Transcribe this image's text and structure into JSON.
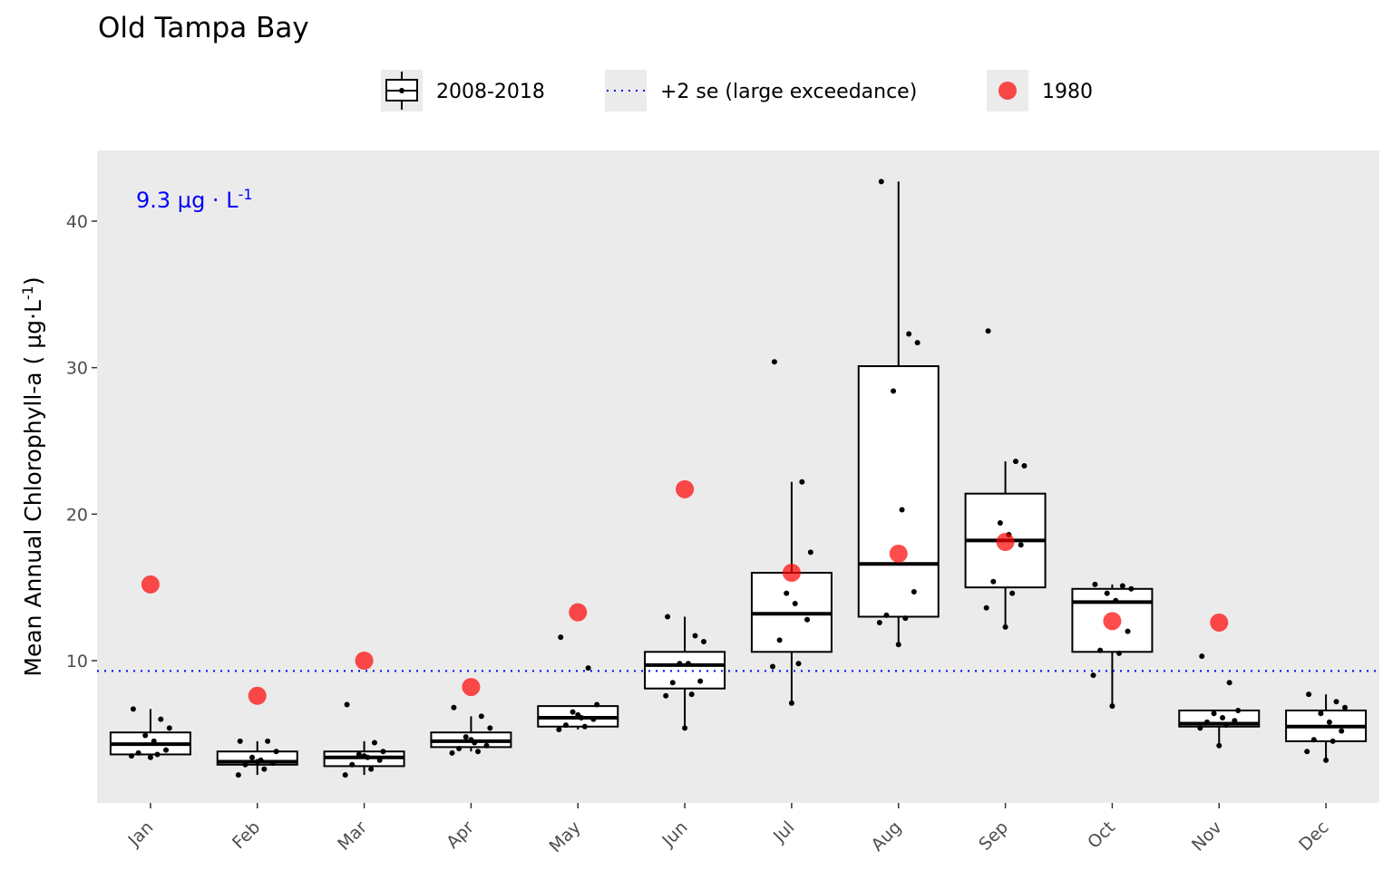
{
  "chart_data": {
    "type": "boxplot",
    "title": "Old Tampa Bay",
    "xlabel": "",
    "ylabel": "Mean Annual Chlorophyll-a ( µg·L",
    "ylabel_sup": "-1",
    "ylabel_end": ")",
    "categories": [
      "Jan",
      "Feb",
      "Mar",
      "Apr",
      "May",
      "Jun",
      "Jul",
      "Aug",
      "Sep",
      "Oct",
      "Nov",
      "Dec"
    ],
    "ylim": [
      0,
      45
    ],
    "yticks": [
      10,
      20,
      30,
      40
    ],
    "grid": false,
    "legend_position": "top",
    "legend": {
      "box_label": "2008-2018",
      "line_label": "+2 se (large exceedance)",
      "point_label": "1980"
    },
    "annotation": {
      "text": "9.3 µg · L",
      "sup": "-1"
    },
    "threshold": 9.3,
    "colors": {
      "panel": "#ebebeb",
      "threshold": "#0000ff",
      "point_1980": "#ff0000",
      "annotation": "#0000ff"
    },
    "boxes": [
      {
        "month": "Jan",
        "lower": 3.5,
        "q1": 3.6,
        "median": 4.3,
        "q3": 5.1,
        "upper": 6.7
      },
      {
        "month": "Feb",
        "lower": 2.2,
        "q1": 2.9,
        "median": 3.1,
        "q3": 3.8,
        "upper": 4.5
      },
      {
        "month": "Mar",
        "lower": 2.2,
        "q1": 2.8,
        "median": 3.4,
        "q3": 3.8,
        "upper": 4.5
      },
      {
        "month": "Apr",
        "lower": 3.8,
        "q1": 4.1,
        "median": 4.5,
        "q3": 5.1,
        "upper": 6.2
      },
      {
        "month": "May",
        "lower": 5.3,
        "q1": 5.5,
        "median": 6.1,
        "q3": 6.9,
        "upper": 6.9
      },
      {
        "month": "Jun",
        "lower": 5.4,
        "q1": 8.1,
        "median": 9.7,
        "q3": 10.6,
        "upper": 13.0
      },
      {
        "month": "Jul",
        "lower": 7.1,
        "q1": 10.6,
        "median": 13.2,
        "q3": 16.0,
        "upper": 22.2
      },
      {
        "month": "Aug",
        "lower": 11.1,
        "q1": 13.0,
        "median": 16.6,
        "q3": 30.1,
        "upper": 42.7
      },
      {
        "month": "Sep",
        "lower": 12.3,
        "q1": 15.0,
        "median": 18.2,
        "q3": 21.4,
        "upper": 23.6
      },
      {
        "month": "Oct",
        "lower": 6.9,
        "q1": 10.6,
        "median": 14.0,
        "q3": 14.9,
        "upper": 15.2
      },
      {
        "month": "Nov",
        "lower": 4.2,
        "q1": 5.5,
        "median": 5.7,
        "q3": 6.6,
        "upper": 6.6
      },
      {
        "month": "Dec",
        "lower": 3.2,
        "q1": 4.5,
        "median": 5.5,
        "q3": 6.6,
        "upper": 7.7
      }
    ],
    "yearly_points": [
      [
        6.7,
        6.0,
        5.4,
        4.9,
        4.5,
        3.9,
        3.7,
        3.6,
        3.5,
        3.4
      ],
      [
        4.5,
        4.5,
        3.8,
        3.4,
        3.2,
        3.0,
        2.9,
        2.6,
        2.2,
        3.1
      ],
      [
        7.0,
        4.4,
        3.8,
        3.6,
        3.4,
        3.2,
        2.9,
        2.6,
        2.2,
        3.5
      ],
      [
        6.8,
        6.2,
        5.4,
        4.8,
        4.4,
        4.2,
        4.0,
        3.8,
        3.7,
        4.6
      ],
      [
        11.6,
        9.5,
        7.0,
        6.5,
        6.1,
        6.0,
        5.6,
        5.5,
        5.3,
        6.3
      ],
      [
        13.0,
        11.7,
        11.3,
        9.8,
        9.8,
        8.6,
        8.5,
        7.7,
        7.6,
        5.4
      ],
      [
        30.4,
        22.2,
        17.4,
        14.6,
        13.9,
        12.8,
        11.4,
        9.8,
        9.6,
        7.1
      ],
      [
        42.7,
        32.3,
        31.7,
        28.4,
        20.3,
        14.7,
        13.1,
        12.9,
        12.6,
        11.1
      ],
      [
        32.5,
        23.6,
        23.3,
        19.4,
        18.6,
        17.9,
        15.4,
        14.6,
        13.6,
        12.3
      ],
      [
        15.2,
        15.1,
        14.9,
        14.6,
        14.1,
        12.0,
        10.7,
        10.5,
        9.0,
        6.9
      ],
      [
        10.3,
        8.5,
        6.6,
        6.4,
        6.1,
        5.9,
        5.8,
        5.6,
        5.4,
        4.2
      ],
      [
        7.7,
        7.2,
        6.8,
        6.4,
        5.8,
        5.2,
        4.6,
        4.5,
        3.8,
        3.2
      ]
    ],
    "points_1980": [
      15.2,
      7.6,
      10.0,
      8.2,
      13.3,
      21.7,
      16.0,
      17.3,
      18.1,
      12.7,
      12.6,
      null
    ]
  }
}
